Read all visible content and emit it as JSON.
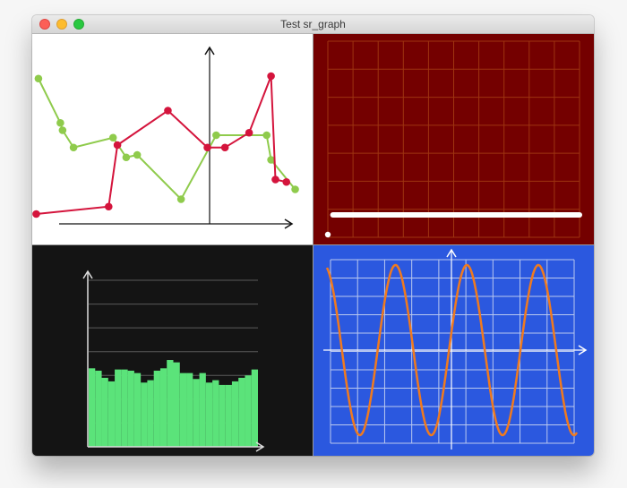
{
  "window": {
    "title": "Test sr_graph"
  },
  "colors": {
    "panel1_bg": "#ffffff",
    "panel2_bg": "#740000",
    "panel3_bg": "#141414",
    "panel4_bg": "#2b58df",
    "green_series": "#8fcb4c",
    "red_series": "#d4143c",
    "histogram_fill": "#5be37a",
    "sine_line": "#f07a1e"
  },
  "chart_data": [
    {
      "type": "line",
      "series": [
        {
          "color": "#8fcb4c",
          "points": [
            [
              -7.8,
              5.9
            ],
            [
              -6.8,
              4.1
            ],
            [
              -6.7,
              3.8
            ],
            [
              -6.2,
              3.1
            ],
            [
              -4.4,
              3.5
            ],
            [
              -3.8,
              2.7
            ],
            [
              -3.3,
              2.8
            ],
            [
              -1.3,
              1.0
            ],
            [
              0.3,
              3.6
            ],
            [
              2.6,
              3.6
            ],
            [
              2.8,
              2.6
            ],
            [
              3.9,
              1.4
            ]
          ]
        },
        {
          "color": "#d4143c",
          "points": [
            [
              -7.9,
              0.4
            ],
            [
              -4.6,
              0.7
            ],
            [
              -4.2,
              3.2
            ],
            [
              -1.9,
              4.6
            ],
            [
              -0.1,
              3.1
            ],
            [
              0.7,
              3.1
            ],
            [
              1.8,
              3.7
            ],
            [
              2.8,
              6.0
            ],
            [
              3.0,
              1.8
            ],
            [
              3.5,
              1.7
            ]
          ]
        }
      ],
      "x_axis": "arrow",
      "y_axis": "arrow",
      "grid": false
    },
    {
      "type": "line",
      "series": [
        {
          "color": "#ffffff",
          "y_value": 0.95,
          "x_range": [
            0.02,
            1.0
          ],
          "style": "thick"
        }
      ],
      "extra_point": [
        0.0,
        0.1
      ],
      "grid": true,
      "grid_color": "#9e3410"
    },
    {
      "type": "bar",
      "values": [
        3.3,
        3.2,
        2.9,
        2.75,
        3.25,
        3.25,
        3.2,
        3.1,
        2.7,
        2.8,
        3.2,
        3.3,
        3.65,
        3.55,
        3.1,
        3.1,
        2.85,
        3.1,
        2.7,
        2.8,
        2.6,
        2.6,
        2.75,
        2.9,
        3.0,
        3.25
      ],
      "ylim": [
        0,
        7
      ],
      "grid": true,
      "color": "#5be37a"
    },
    {
      "type": "line",
      "function": "sine",
      "cycles": 3.5,
      "amplitude": 1,
      "color": "#f07a1e",
      "grid": true
    }
  ]
}
